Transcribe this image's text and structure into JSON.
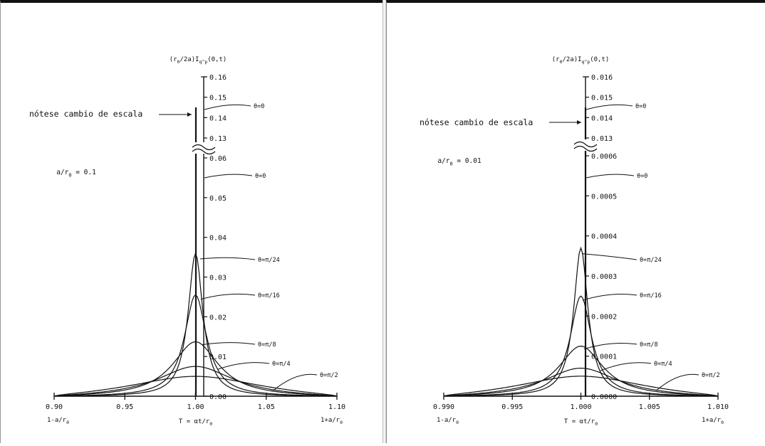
{
  "chart_data": [
    {
      "type": "line",
      "ylabel": "(r_0/2a)I_q^p(0,t)",
      "xlabel": "T = αt/r_0",
      "param": "a/r_0 = 0.1",
      "note": "nótese cambio de escala",
      "xlim": [
        0.9,
        1.1
      ],
      "x_ticks": [
        "0.90",
        "0.95",
        "1.00",
        "1.05",
        "1.10"
      ],
      "x_end_labels": [
        "1-a/r_0",
        "1+a/r_0"
      ],
      "y_ticks_lower": [
        "0.00",
        "0.01",
        "0.02",
        "0.03",
        "0.04",
        "0.05",
        "0.06"
      ],
      "y_ticks_upper": [
        "0.13",
        "0.14",
        "0.15",
        "0.16"
      ],
      "series": [
        {
          "name": "θ=0",
          "peak": 0.145
        },
        {
          "name": "θ=0",
          "peak": 0.056
        },
        {
          "name": "θ=π/24",
          "peak": 0.036
        },
        {
          "name": "θ=π/16",
          "peak": 0.0255
        },
        {
          "name": "θ=π/8",
          "peak": 0.0137
        },
        {
          "name": "θ=π/4",
          "peak": 0.0075
        },
        {
          "name": "θ=π/2",
          "peak": 0.005
        }
      ]
    },
    {
      "type": "line",
      "ylabel": "(r_0/2a)I_q^p(0,t)",
      "xlabel": "T = αt/r_0",
      "param": "a/r_0 = 0.01",
      "note": "nótese cambio de escala",
      "xlim": [
        0.99,
        1.01
      ],
      "x_ticks": [
        "0.990",
        "0.995",
        "1.000",
        "1.005",
        "1.010"
      ],
      "x_end_labels": [
        "1-a/r_0",
        "1+a/r_0"
      ],
      "y_ticks_lower": [
        "0.0000",
        "0.0001",
        "0.0002",
        "0.0003",
        "0.0004",
        "0.0005",
        "0.0006"
      ],
      "y_ticks_upper": [
        "0.013",
        "0.014",
        "0.015",
        "0.016"
      ],
      "series": [
        {
          "name": "θ=0",
          "peak": 0.0145
        },
        {
          "name": "θ=0",
          "peak": 0.00053
        },
        {
          "name": "θ=π/24",
          "peak": 0.00037
        },
        {
          "name": "θ=π/16",
          "peak": 0.00025
        },
        {
          "name": "θ=π/8",
          "peak": 0.000125
        },
        {
          "name": "θ=π/4",
          "peak": 7e-05
        },
        {
          "name": "θ=π/2",
          "peak": 5e-05
        }
      ]
    }
  ],
  "colors": {
    "ink": "#111111",
    "background": "#ffffff"
  }
}
